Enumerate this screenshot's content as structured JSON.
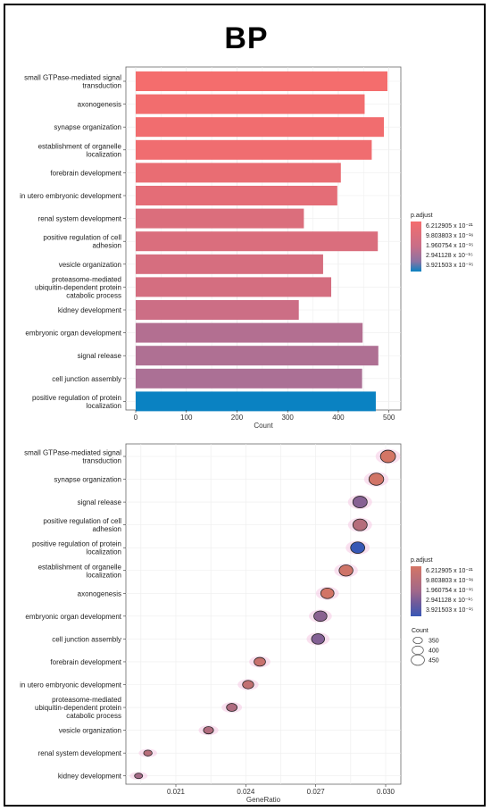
{
  "title": "BP",
  "legend_title": "p.adjust",
  "legend_labels": [
    "6.212905 x 10⁻²¹",
    "9.803803 x 10⁻¹⁶",
    "1.960754 x 10⁻¹⁵",
    "2.941128 x 10⁻¹⁵",
    "3.921503 x 10⁻¹⁵"
  ],
  "size_legend_title": "Count",
  "size_legend_values": [
    350,
    400,
    450
  ],
  "colors": {
    "low": "#f46d6d",
    "mid": "#8a72a3",
    "high": "#0a82c2",
    "dot_high": "#3857b5",
    "dot_low": "#d47565",
    "dot_mid": "#6c5a9c"
  },
  "chart_data": [
    {
      "type": "bar",
      "orientation": "horizontal",
      "xlabel": "Count",
      "ylabel": "",
      "xlim": [
        0,
        520
      ],
      "xticks": [
        0,
        100,
        200,
        300,
        400,
        500
      ],
      "grid": true,
      "legend": "right",
      "categories": [
        "small GTPase-mediated signal transduction",
        "axonogenesis",
        "synapse organization",
        "establishment of organelle localization",
        "forebrain development",
        "in utero embryonic development",
        "renal system development",
        "positive regulation of cell adhesion",
        "vesicle organization",
        "proteasome-mediated ubiquitin-dependent protein catabolic process",
        "kidney development",
        "embryonic organ development",
        "signal release",
        "cell junction assembly",
        "positive regulation of protein localization"
      ],
      "category_lines": [
        [
          "small GTPase-mediated signal",
          "transduction"
        ],
        [
          "axonogenesis"
        ],
        [
          "synapse organization"
        ],
        [
          "establishment of organelle",
          "localization"
        ],
        [
          "forebrain development"
        ],
        [
          "in utero embryonic development"
        ],
        [
          "renal system development"
        ],
        [
          "positive regulation of cell",
          "adhesion"
        ],
        [
          "vesicle organization"
        ],
        [
          "proteasome-mediated",
          "ubiquitin-dependent protein",
          "catabolic process"
        ],
        [
          "kidney development"
        ],
        [
          "embryonic organ development"
        ],
        [
          "signal release"
        ],
        [
          "cell junction assembly"
        ],
        [
          "positive regulation of protein",
          "localization"
        ]
      ],
      "values": [
        497,
        452,
        490,
        466,
        405,
        398,
        332,
        478,
        370,
        386,
        322,
        448,
        479,
        447,
        474
      ],
      "color_level": [
        0.0,
        0.02,
        0.03,
        0.05,
        0.12,
        0.18,
        0.28,
        0.3,
        0.34,
        0.36,
        0.45,
        0.6,
        0.62,
        0.64,
        1.0
      ]
    },
    {
      "type": "scatter",
      "xlabel": "GeneRatio",
      "ylabel": "",
      "xlim": [
        0.0192,
        0.0305
      ],
      "xticks": [
        0.021,
        0.024,
        0.027,
        0.03
      ],
      "grid": true,
      "legend": "right",
      "categories": [
        "small GTPase-mediated signal transduction",
        "synapse organization",
        "signal release",
        "positive regulation of cell adhesion",
        "positive regulation of protein localization",
        "establishment of organelle localization",
        "axonogenesis",
        "embryonic organ development",
        "cell junction assembly",
        "forebrain development",
        "in utero embryonic development",
        "proteasome-mediated ubiquitin-dependent protein catabolic process",
        "vesicle organization",
        "renal system development",
        "kidney development"
      ],
      "category_lines": [
        [
          "small GTPase-mediated signal",
          "transduction"
        ],
        [
          "synapse organization"
        ],
        [
          "signal release"
        ],
        [
          "positive regulation of cell",
          "adhesion"
        ],
        [
          "positive regulation of protein",
          "localization"
        ],
        [
          "establishment of organelle",
          "localization"
        ],
        [
          "axonogenesis"
        ],
        [
          "embryonic organ development"
        ],
        [
          "cell junction assembly"
        ],
        [
          "forebrain development"
        ],
        [
          "in utero embryonic development"
        ],
        [
          "proteasome-mediated",
          "ubiquitin-dependent protein",
          "catabolic process"
        ],
        [
          "vesicle organization"
        ],
        [
          "renal system development"
        ],
        [
          "kidney development"
        ]
      ],
      "gene_ratio": [
        0.0301,
        0.0296,
        0.0289,
        0.0289,
        0.0288,
        0.0283,
        0.0275,
        0.0272,
        0.0271,
        0.0246,
        0.0241,
        0.0234,
        0.0224,
        0.0198,
        0.0194
      ],
      "count": [
        497,
        490,
        479,
        478,
        474,
        466,
        452,
        448,
        447,
        405,
        398,
        386,
        370,
        332,
        322
      ],
      "color_level": [
        0.0,
        0.03,
        0.62,
        0.3,
        1.0,
        0.05,
        0.02,
        0.6,
        0.64,
        0.12,
        0.18,
        0.36,
        0.34,
        0.28,
        0.45
      ]
    }
  ]
}
